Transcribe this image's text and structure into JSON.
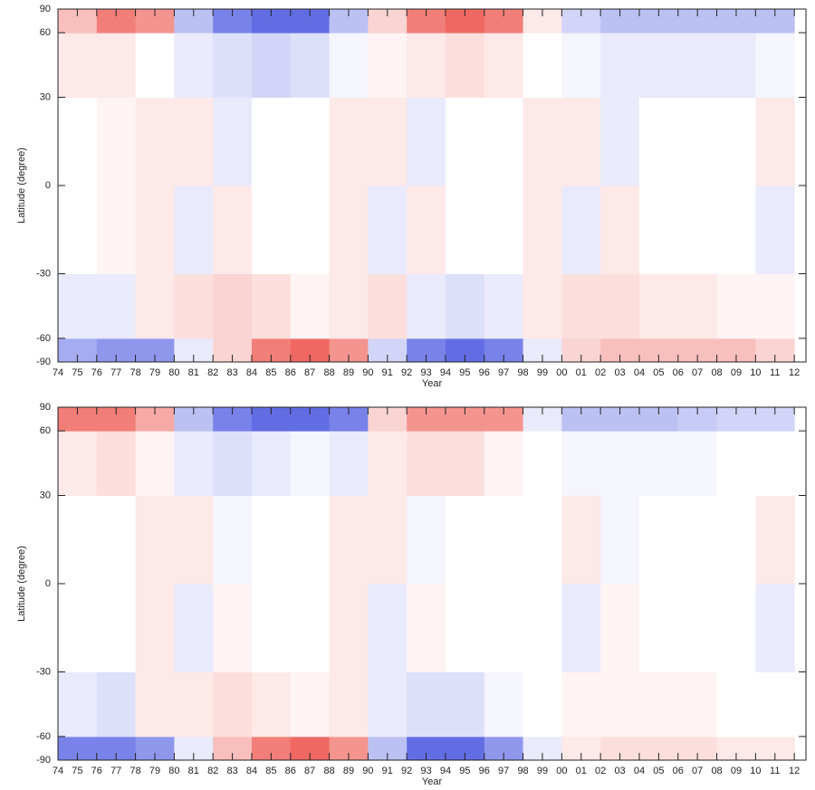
{
  "chart_data": [
    {
      "type": "heatmap",
      "xlabel": "Year",
      "ylabel": "Latitude (degree)",
      "yscale": "sin",
      "xlim": [
        1974,
        2012.6
      ],
      "ylim": [
        -90,
        90
      ],
      "xticks": [
        {
          "value": 1974,
          "label": "74"
        },
        {
          "value": 1975,
          "label": "75"
        },
        {
          "value": 1976,
          "label": "76"
        },
        {
          "value": 1977,
          "label": "77"
        },
        {
          "value": 1978,
          "label": "78"
        },
        {
          "value": 1979,
          "label": "79"
        },
        {
          "value": 1980,
          "label": "80"
        },
        {
          "value": 1981,
          "label": "81"
        },
        {
          "value": 1982,
          "label": "82"
        },
        {
          "value": 1983,
          "label": "83"
        },
        {
          "value": 1984,
          "label": "84"
        },
        {
          "value": 1985,
          "label": "85"
        },
        {
          "value": 1986,
          "label": "86"
        },
        {
          "value": 1987,
          "label": "87"
        },
        {
          "value": 1988,
          "label": "88"
        },
        {
          "value": 1989,
          "label": "89"
        },
        {
          "value": 1990,
          "label": "90"
        },
        {
          "value": 1991,
          "label": "91"
        },
        {
          "value": 1992,
          "label": "92"
        },
        {
          "value": 1993,
          "label": "93"
        },
        {
          "value": 1994,
          "label": "94"
        },
        {
          "value": 1995,
          "label": "95"
        },
        {
          "value": 1996,
          "label": "96"
        },
        {
          "value": 1997,
          "label": "97"
        },
        {
          "value": 1998,
          "label": "98"
        },
        {
          "value": 1999,
          "label": "99"
        },
        {
          "value": 2000,
          "label": "00"
        },
        {
          "value": 2001,
          "label": "01"
        },
        {
          "value": 2002,
          "label": "02"
        },
        {
          "value": 2003,
          "label": "03"
        },
        {
          "value": 2004,
          "label": "04"
        },
        {
          "value": 2005,
          "label": "05"
        },
        {
          "value": 2006,
          "label": "06"
        },
        {
          "value": 2007,
          "label": "07"
        },
        {
          "value": 2008,
          "label": "08"
        },
        {
          "value": 2009,
          "label": "09"
        },
        {
          "value": 2010,
          "label": "10"
        },
        {
          "value": 2011,
          "label": "11"
        },
        {
          "value": 2012,
          "label": "12"
        }
      ],
      "yticks": [
        90,
        60,
        30,
        0,
        -30,
        -60,
        -90
      ],
      "x_bins": [
        1974,
        1976,
        1978,
        1980,
        1982,
        1984,
        1986,
        1988,
        1990,
        1992,
        1994,
        1996,
        1998,
        2000,
        2002,
        2004,
        2006,
        2008,
        2010,
        2012
      ],
      "y_bins": [
        -90,
        -60,
        -30,
        0,
        30,
        60,
        90
      ],
      "vlim": [
        -1,
        1
      ],
      "cmap": [
        "#1f2fd8",
        "#ffffff",
        "#e8281e"
      ],
      "values": [
        [
          -0.4,
          -0.5,
          -0.5,
          -0.1,
          0.2,
          0.6,
          0.7,
          0.5,
          -0.2,
          -0.6,
          -0.7,
          -0.6,
          -0.1,
          0.2,
          0.3,
          0.3,
          0.3,
          0.3,
          0.2
        ],
        [
          -0.1,
          -0.1,
          0.1,
          0.15,
          0.2,
          0.15,
          0.05,
          0.1,
          0.15,
          -0.1,
          -0.15,
          -0.1,
          0.1,
          0.15,
          0.15,
          0.1,
          0.1,
          0.05,
          0.05
        ],
        [
          0,
          0.05,
          0.1,
          -0.1,
          0.1,
          0,
          0,
          0.1,
          -0.1,
          0.1,
          0,
          0,
          0.1,
          -0.1,
          0.1,
          0,
          0,
          0,
          -0.1
        ],
        [
          0,
          0.05,
          0.1,
          0.1,
          -0.1,
          0,
          0,
          0.1,
          0.1,
          -0.1,
          0,
          0,
          0.1,
          0.1,
          -0.1,
          0,
          0,
          0,
          0.1
        ],
        [
          0.1,
          0.1,
          0,
          -0.1,
          -0.15,
          -0.2,
          -0.15,
          -0.05,
          0.05,
          0.1,
          0.15,
          0.1,
          0,
          -0.05,
          -0.1,
          -0.1,
          -0.1,
          -0.1,
          -0.05
        ],
        [
          0.3,
          0.6,
          0.5,
          -0.3,
          -0.6,
          -0.7,
          -0.7,
          -0.3,
          0.2,
          0.6,
          0.7,
          0.6,
          0.1,
          -0.2,
          -0.3,
          -0.3,
          -0.3,
          -0.3,
          -0.3
        ]
      ]
    },
    {
      "type": "heatmap",
      "xlabel": "Year",
      "ylabel": "Latitude (degree)",
      "yscale": "sin",
      "xlim": [
        1974,
        2012.6
      ],
      "ylim": [
        -90,
        90
      ],
      "xticks": [
        {
          "value": 1974,
          "label": "74"
        },
        {
          "value": 1975,
          "label": "75"
        },
        {
          "value": 1976,
          "label": "76"
        },
        {
          "value": 1977,
          "label": "77"
        },
        {
          "value": 1978,
          "label": "78"
        },
        {
          "value": 1979,
          "label": "79"
        },
        {
          "value": 1980,
          "label": "80"
        },
        {
          "value": 1981,
          "label": "81"
        },
        {
          "value": 1982,
          "label": "82"
        },
        {
          "value": 1983,
          "label": "83"
        },
        {
          "value": 1984,
          "label": "84"
        },
        {
          "value": 1985,
          "label": "85"
        },
        {
          "value": 1986,
          "label": "86"
        },
        {
          "value": 1987,
          "label": "87"
        },
        {
          "value": 1988,
          "label": "88"
        },
        {
          "value": 1989,
          "label": "89"
        },
        {
          "value": 1990,
          "label": "90"
        },
        {
          "value": 1991,
          "label": "91"
        },
        {
          "value": 1992,
          "label": "92"
        },
        {
          "value": 1993,
          "label": "93"
        },
        {
          "value": 1994,
          "label": "94"
        },
        {
          "value": 1995,
          "label": "95"
        },
        {
          "value": 1996,
          "label": "96"
        },
        {
          "value": 1997,
          "label": "97"
        },
        {
          "value": 1998,
          "label": "98"
        },
        {
          "value": 1999,
          "label": "99"
        },
        {
          "value": 2000,
          "label": "00"
        },
        {
          "value": 2001,
          "label": "01"
        },
        {
          "value": 2002,
          "label": "02"
        },
        {
          "value": 2003,
          "label": "03"
        },
        {
          "value": 2004,
          "label": "04"
        },
        {
          "value": 2005,
          "label": "05"
        },
        {
          "value": 2006,
          "label": "06"
        },
        {
          "value": 2007,
          "label": "07"
        },
        {
          "value": 2008,
          "label": "08"
        },
        {
          "value": 2009,
          "label": "09"
        },
        {
          "value": 2010,
          "label": "10"
        },
        {
          "value": 2011,
          "label": "11"
        },
        {
          "value": 2012,
          "label": "12"
        }
      ],
      "yticks": [
        90,
        60,
        30,
        0,
        -30,
        -60,
        -90
      ],
      "x_bins": [
        1974,
        1976,
        1978,
        1980,
        1982,
        1984,
        1986,
        1988,
        1990,
        1992,
        1994,
        1996,
        1998,
        2000,
        2002,
        2004,
        2006,
        2008,
        2010,
        2012
      ],
      "y_bins": [
        -90,
        -60,
        -30,
        0,
        30,
        60,
        90
      ],
      "vlim": [
        -1,
        1
      ],
      "cmap": [
        "#1f2fd8",
        "#ffffff",
        "#e8281e"
      ],
      "values": [
        [
          -0.6,
          -0.6,
          -0.5,
          -0.1,
          0.3,
          0.6,
          0.7,
          0.5,
          -0.3,
          -0.7,
          -0.7,
          -0.5,
          -0.1,
          0.1,
          0.15,
          0.15,
          0.15,
          0.1,
          0.1
        ],
        [
          -0.1,
          -0.15,
          0.1,
          0.1,
          0.15,
          0.1,
          0.05,
          0.1,
          -0.1,
          -0.15,
          -0.15,
          -0.05,
          0,
          0.05,
          0.05,
          0.05,
          0.05,
          0,
          0
        ],
        [
          0,
          0,
          0.1,
          -0.1,
          0.05,
          0,
          0,
          0.1,
          -0.1,
          0.05,
          0,
          0,
          0,
          -0.1,
          0.05,
          0,
          0,
          0,
          -0.1
        ],
        [
          0,
          0,
          0.1,
          0.1,
          -0.05,
          0,
          0,
          0.1,
          0.1,
          -0.05,
          0,
          0,
          0,
          0.1,
          -0.05,
          0,
          0,
          0,
          0.1
        ],
        [
          0.1,
          0.15,
          0.05,
          -0.1,
          -0.15,
          -0.1,
          -0.05,
          -0.1,
          0.1,
          0.15,
          0.15,
          0.05,
          0,
          -0.05,
          -0.05,
          -0.05,
          -0.05,
          0,
          0
        ],
        [
          0.6,
          0.6,
          0.4,
          -0.3,
          -0.6,
          -0.7,
          -0.7,
          -0.6,
          0.2,
          0.5,
          0.5,
          0.5,
          -0.1,
          -0.3,
          -0.3,
          -0.3,
          -0.25,
          -0.2,
          -0.2
        ]
      ]
    }
  ]
}
